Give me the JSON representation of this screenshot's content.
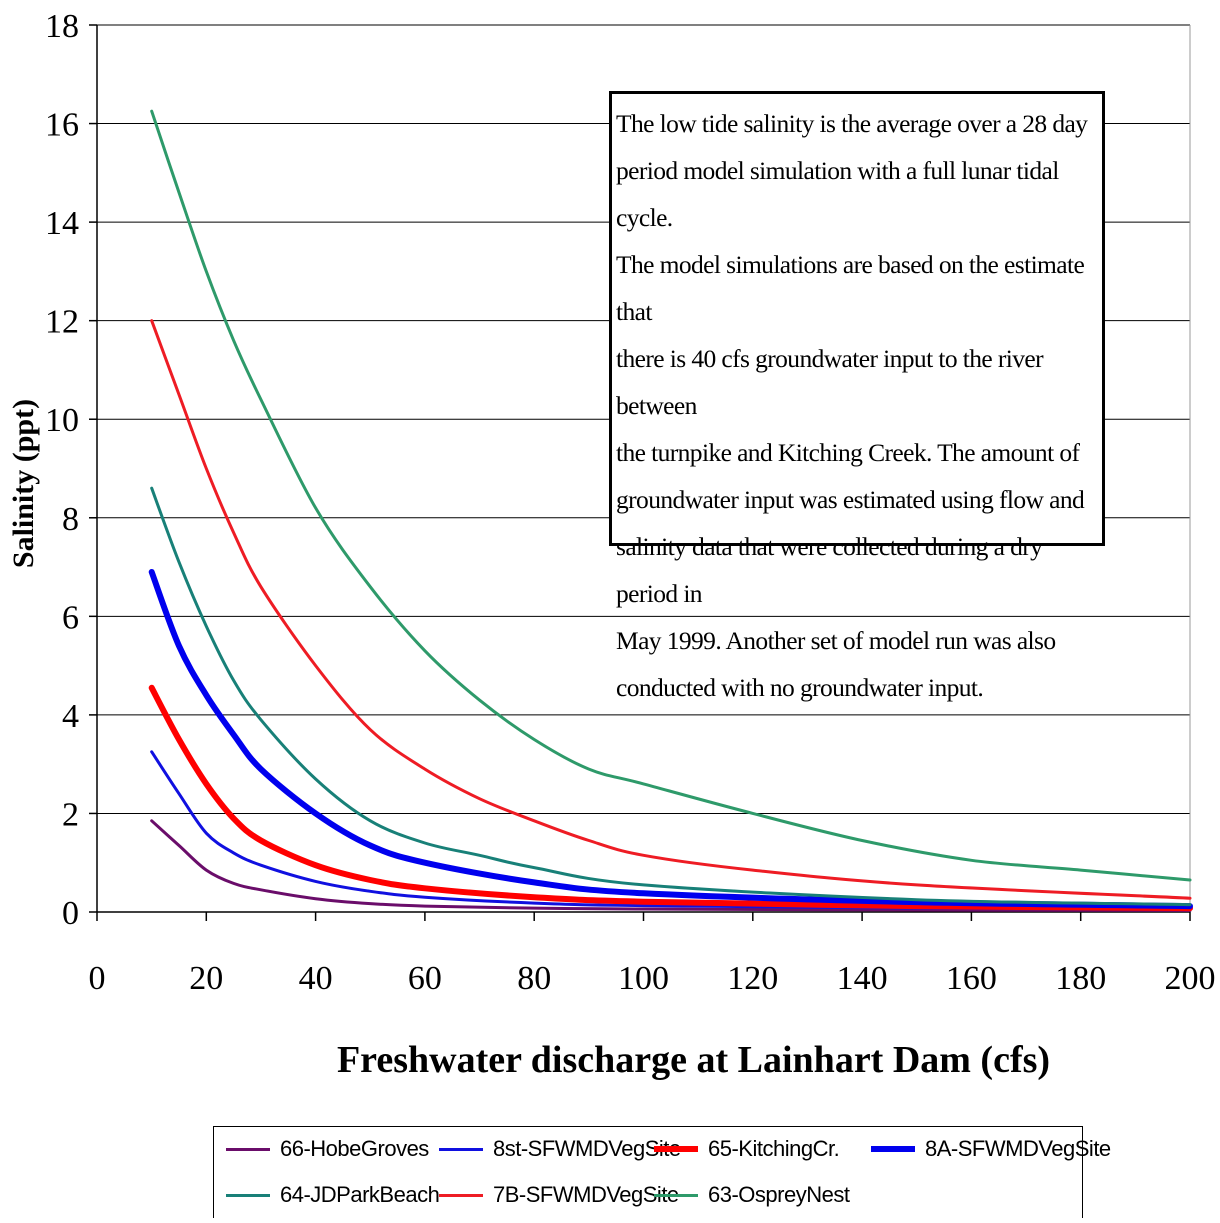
{
  "chart_data": {
    "type": "line",
    "title": "",
    "xlabel": "Freshwater discharge at Lainhart Dam (cfs)",
    "ylabel": "Salinity (ppt)",
    "xlim": [
      0,
      200
    ],
    "ylim": [
      0,
      18
    ],
    "xticks": [
      0,
      20,
      40,
      60,
      80,
      100,
      120,
      140,
      160,
      180,
      200
    ],
    "yticks": [
      0,
      2,
      4,
      6,
      8,
      10,
      12,
      14,
      16,
      18
    ],
    "grid": "horizontal",
    "legend_position": "bottom",
    "annotation": "The low tide salinity is the average over a 28 day period model simulation with a full lunar tidal cycle. The model simulations are based on the estimate that there is 40 cfs groundwater input to the river between the turnpike and Kitching Creek. The amount of groundwater input was estimated using flow and salinity data that were collected during a dry period in May 1999. Another set of model run was also conducted with no groundwater input.",
    "annotation_lines": [
      "The low tide salinity is the average over a 28 day",
      "period model simulation with a full lunar tidal cycle.",
      "The model simulations are based on the estimate that",
      "there is 40 cfs groundwater input to the river between",
      "the turnpike and Kitching Creek. The amount of",
      "groundwater input was estimated using  flow and",
      "salinity data that were collected during a dry period in",
      "May 1999. Another set of model run was also",
      "conducted with no groundwater input."
    ],
    "series": [
      {
        "name": "66-HobeGroves",
        "color": "#6a0d6a",
        "width": "thin",
        "x": [
          10,
          15,
          20,
          25,
          30,
          40,
          50,
          60,
          80,
          100,
          150,
          200
        ],
        "y": [
          1.85,
          1.35,
          0.85,
          0.58,
          0.45,
          0.27,
          0.17,
          0.12,
          0.08,
          0.06,
          0.04,
          0.03
        ]
      },
      {
        "name": "8st-SFWMDVegSite",
        "color": "#1010e0",
        "width": "thin",
        "x": [
          10,
          15,
          20,
          25,
          30,
          40,
          50,
          60,
          80,
          100,
          150,
          200
        ],
        "y": [
          3.25,
          2.4,
          1.6,
          1.2,
          0.95,
          0.62,
          0.42,
          0.3,
          0.18,
          0.13,
          0.08,
          0.06
        ]
      },
      {
        "name": "65-KitchingCr.",
        "color": "#ff0000",
        "width": "thick",
        "x": [
          10,
          15,
          20,
          25,
          30,
          40,
          50,
          60,
          80,
          100,
          150,
          200
        ],
        "y": [
          4.55,
          3.5,
          2.6,
          1.9,
          1.45,
          0.95,
          0.65,
          0.48,
          0.3,
          0.21,
          0.12,
          0.08
        ]
      },
      {
        "name": "8A-SFWMDVegSite",
        "color": "#0000ee",
        "width": "thick",
        "x": [
          10,
          15,
          20,
          25,
          30,
          40,
          50,
          60,
          80,
          100,
          150,
          200
        ],
        "y": [
          6.9,
          5.4,
          4.4,
          3.6,
          2.9,
          2.0,
          1.35,
          1.0,
          0.6,
          0.38,
          0.2,
          0.12
        ]
      },
      {
        "name": "64-JDParkBeach",
        "color": "#188078",
        "width": "thin",
        "x": [
          10,
          15,
          20,
          25,
          30,
          40,
          50,
          60,
          70,
          80,
          100,
          150,
          200
        ],
        "y": [
          8.6,
          7.1,
          5.8,
          4.7,
          3.9,
          2.7,
          1.85,
          1.4,
          1.15,
          0.9,
          0.55,
          0.25,
          0.15
        ]
      },
      {
        "name": "7B-SFWMDVegSite",
        "color": "#ee1c24",
        "width": "thin",
        "x": [
          10,
          15,
          20,
          25,
          30,
          40,
          50,
          60,
          70,
          80,
          90,
          100,
          120,
          150,
          200
        ],
        "y": [
          12.0,
          10.5,
          9.0,
          7.7,
          6.6,
          5.0,
          3.7,
          2.9,
          2.3,
          1.85,
          1.45,
          1.15,
          0.85,
          0.55,
          0.28
        ]
      },
      {
        "name": "63-OspreyNest",
        "color": "#2e9a6a",
        "width": "thin",
        "x": [
          10,
          15,
          20,
          25,
          30,
          40,
          50,
          60,
          70,
          80,
          90,
          100,
          120,
          140,
          160,
          180,
          200
        ],
        "y": [
          16.25,
          14.6,
          13.0,
          11.6,
          10.4,
          8.2,
          6.6,
          5.3,
          4.3,
          3.5,
          2.9,
          2.6,
          2.0,
          1.45,
          1.05,
          0.85,
          0.65
        ]
      }
    ]
  }
}
